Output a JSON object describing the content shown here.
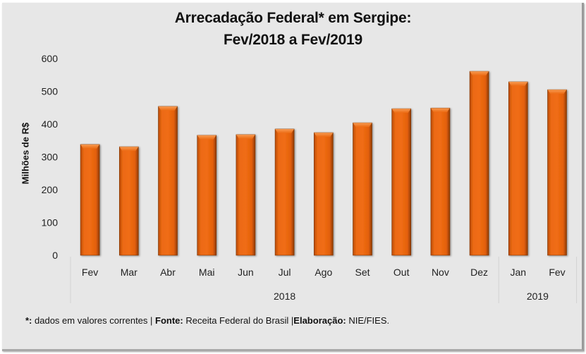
{
  "chart_data": {
    "type": "bar",
    "title": "Arrecadação Federal* em Sergipe:",
    "subtitle": "Fev/2018 a Fev/2019",
    "xlabel": "",
    "ylabel": "Milhões de R$",
    "ylim": [
      0,
      600
    ],
    "yticks": [
      0,
      100,
      200,
      300,
      400,
      500,
      600
    ],
    "grid": false,
    "legend": "none",
    "categories": [
      "Fev",
      "Mar",
      "Abr",
      "Mai",
      "Jun",
      "Jul",
      "Ago",
      "Set",
      "Out",
      "Nov",
      "Dez",
      "Jan",
      "Fev"
    ],
    "groups": [
      {
        "label": "2018",
        "count": 11
      },
      {
        "label": "2019",
        "count": 2
      }
    ],
    "series": [
      {
        "name": "Arrecadação Federal",
        "color": "#e8620a",
        "values": [
          338,
          331,
          454,
          366,
          368,
          385,
          374,
          404,
          447,
          449,
          561,
          529,
          505
        ]
      }
    ]
  },
  "footnote": {
    "asterisk_label": "*:",
    "asterisk_text": " dados em valores correntes | ",
    "source_label": "Fonte:",
    "source_text": " Receita Federal do Brasil |",
    "credit_label": "Elaboração:",
    "credit_text": " NIE/FIES."
  }
}
